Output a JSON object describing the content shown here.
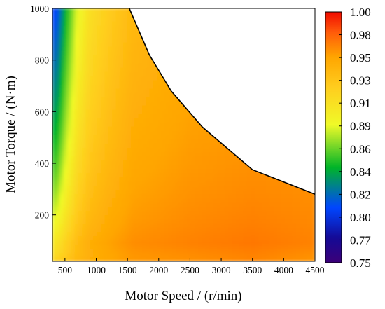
{
  "chart_data": {
    "type": "heatmap",
    "title": "",
    "xlabel": "Motor Speed / (r/min)",
    "ylabel": "Motor Torque / (N·m)",
    "xlim": [
      300,
      4500
    ],
    "ylim": [
      20,
      1000
    ],
    "x_ticks": [
      "500",
      "1000",
      "1500",
      "2000",
      "2500",
      "3000",
      "3500",
      "4000",
      "4500"
    ],
    "y_ticks": [
      "200",
      "400",
      "600",
      "800",
      "1000"
    ],
    "colorbar": {
      "min": 0.75,
      "max": 1.0,
      "ticks": [
        "0.75",
        "0.77",
        "0.80",
        "0.82",
        "0.84",
        "0.86",
        "0.89",
        "0.91",
        "0.93",
        "0.95",
        "0.98",
        "1.00"
      ]
    },
    "max_torque_envelope": {
      "speed": [
        1530,
        1850,
        2200,
        2700,
        3500,
        4500
      ],
      "torque": [
        1000,
        820,
        680,
        540,
        375,
        280
      ]
    },
    "efficiency_profile_by_speed": {
      "speed": [
        300,
        400,
        500,
        700,
        900,
        1200,
        1600,
        2500,
        3500,
        4500
      ],
      "efficiency_high_torque": [
        0.8,
        0.81,
        0.84,
        0.885,
        0.91,
        0.925,
        0.94,
        0.95,
        0.952,
        0.955
      ],
      "efficiency_low_torque": [
        0.935,
        0.94,
        0.945,
        0.955,
        0.96,
        0.965,
        0.97,
        0.972,
        0.976,
        0.97
      ]
    }
  }
}
